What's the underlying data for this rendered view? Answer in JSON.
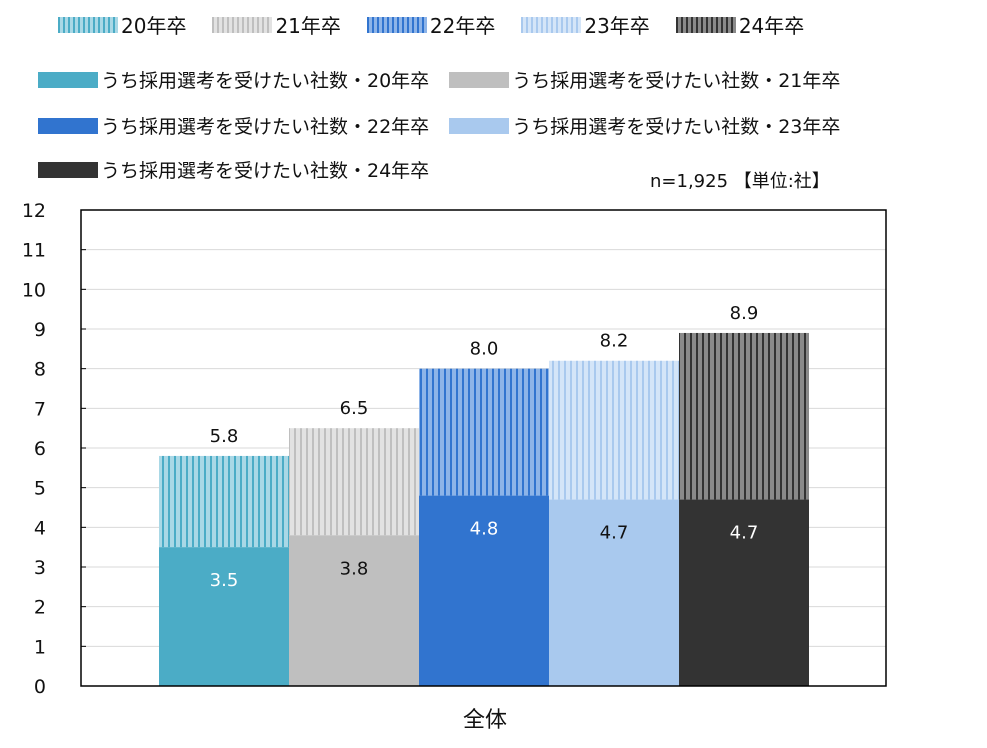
{
  "chart_data": {
    "type": "bar",
    "stacked_overlay": true,
    "categories": [
      "全体"
    ],
    "ylim": [
      0,
      12
    ],
    "yticks": [
      "0",
      "1",
      "2",
      "3",
      "4",
      "5",
      "6",
      "7",
      "8",
      "9",
      "10",
      "11",
      "12"
    ],
    "grid": true,
    "legend_position": "top",
    "note": "n=1,925 【単位:社】",
    "series": [
      {
        "name": "20年卒",
        "total": "5.8",
        "sub": "3.5",
        "total_value": 5.8,
        "sub_value": 3.5,
        "color": "#4bacc6",
        "light": "#a9d8e6"
      },
      {
        "name": "21年卒",
        "total": "6.5",
        "sub": "3.8",
        "total_value": 6.5,
        "sub_value": 3.8,
        "color": "#bfbfbf",
        "light": "#e2e2e2"
      },
      {
        "name": "22年卒",
        "total": "8.0",
        "sub": "4.8",
        "total_value": 8.0,
        "sub_value": 4.8,
        "color": "#3174cf",
        "light": "#8db4e8"
      },
      {
        "name": "23年卒",
        "total": "8.2",
        "sub": "4.7",
        "total_value": 8.2,
        "sub_value": 4.7,
        "color": "#a9c9ee",
        "light": "#d4e5f8"
      },
      {
        "name": "24年卒",
        "total": "8.9",
        "sub": "4.7",
        "total_value": 8.9,
        "sub_value": 4.7,
        "color": "#333333",
        "light": "#8a8a8a"
      }
    ],
    "sub_series_names": [
      "うち採用選考を受けたい社数・20年卒",
      "うち採用選考を受けたい社数・21年卒",
      "うち採用選考を受けたい社数・22年卒",
      "うち採用選考を受けたい社数・23年卒",
      "うち採用選考を受けたい社数・24年卒"
    ]
  }
}
